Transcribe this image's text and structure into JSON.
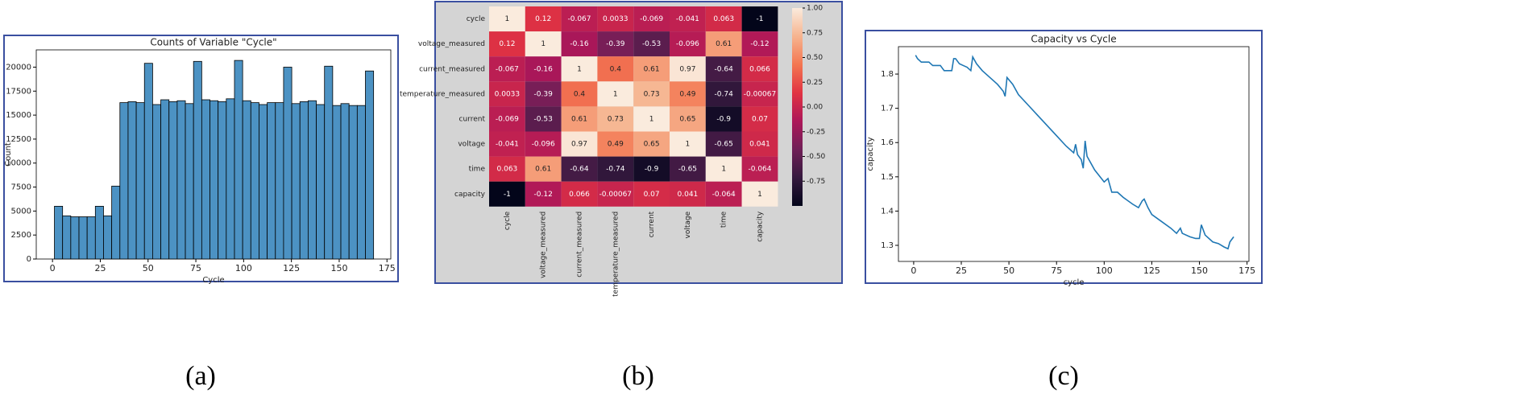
{
  "chart_data": [
    {
      "type": "histogram",
      "title": "Counts of Variable \"Cycle\"",
      "xlabel": "Cycle",
      "ylabel": "Count",
      "panel_label": "(a)",
      "color": "#4c92c3",
      "bins": [
        1,
        5.28,
        9.56,
        13.85,
        18.13,
        22.41,
        26.69,
        30.97,
        35.26,
        39.54,
        43.82,
        48.1,
        52.38,
        56.67,
        60.95,
        65.23,
        69.51,
        73.79,
        78.08,
        82.36,
        86.64,
        90.92,
        95.21,
        99.49,
        103.77,
        108.05,
        112.33,
        116.62,
        120.9,
        125.18,
        129.46,
        133.74,
        138.03,
        142.31,
        146.59,
        150.87,
        155.15,
        159.44,
        163.72,
        168
      ],
      "values": [
        5500,
        4500,
        4400,
        4400,
        4400,
        5500,
        4500,
        7600,
        16300,
        16400,
        16300,
        20400,
        16100,
        16600,
        16400,
        16500,
        16200,
        20600,
        16600,
        16500,
        16400,
        16700,
        20700,
        16500,
        16300,
        16100,
        16300,
        16300,
        20000,
        16200,
        16400,
        16500,
        16100,
        20100,
        16000,
        16200,
        16000,
        16000,
        19600
      ],
      "xlim": [
        -8.5,
        177
      ],
      "xticks": [
        0,
        25,
        50,
        75,
        100,
        125,
        150,
        175
      ],
      "ylim": [
        0,
        21800
      ],
      "yticks": [
        0,
        2500,
        5000,
        7500,
        10000,
        12500,
        15000,
        17500,
        20000
      ]
    },
    {
      "type": "heatmap",
      "panel_label": "(b)",
      "labels": [
        "cycle",
        "voltage_measured",
        "current_measured",
        "temperature_measured",
        "current",
        "voltage",
        "time",
        "capacity"
      ],
      "matrix": [
        [
          1,
          0.12,
          -0.067,
          0.0033,
          -0.069,
          -0.041,
          0.063,
          -1
        ],
        [
          0.12,
          1,
          -0.16,
          -0.39,
          -0.53,
          -0.096,
          0.61,
          -0.12
        ],
        [
          -0.067,
          -0.16,
          1,
          0.4,
          0.61,
          0.97,
          -0.64,
          0.066
        ],
        [
          0.0033,
          -0.39,
          0.4,
          1,
          0.73,
          0.49,
          -0.74,
          -0.00067
        ],
        [
          -0.069,
          -0.53,
          0.61,
          0.73,
          1,
          0.65,
          -0.9,
          0.07
        ],
        [
          -0.041,
          -0.096,
          0.97,
          0.49,
          0.65,
          1,
          -0.65,
          0.041
        ],
        [
          0.063,
          0.61,
          -0.64,
          -0.74,
          -0.9,
          -0.65,
          1,
          -0.064
        ],
        [
          -1,
          -0.12,
          0.066,
          -0.00067,
          0.07,
          0.041,
          -0.064,
          1
        ]
      ],
      "clim": [
        -1,
        1
      ],
      "cticks": [
        {
          "value": 1,
          "label": "1.00"
        },
        0.75,
        {
          "value": 0.5,
          "label": "0.50"
        },
        0.25,
        {
          "value": 0,
          "label": "0.00"
        },
        -0.25,
        {
          "value": -0.5,
          "label": "-0.50"
        },
        -0.75
      ],
      "colors": [
        "#03051a",
        "#35193e",
        "#701f57",
        "#ad1759",
        "#e13342",
        "#f37651",
        "#f6b48f",
        "#faebdd"
      ]
    },
    {
      "type": "line",
      "title": "Capacity vs Cycle",
      "xlabel": "cycle",
      "ylabel": "capacity",
      "panel_label": "(c)",
      "color": "#1f77b4",
      "x": [
        1,
        2,
        4,
        8,
        10,
        14,
        16,
        20,
        21,
        22,
        24,
        26,
        28,
        30,
        31,
        33,
        36,
        40,
        44,
        47,
        48,
        49,
        52,
        55,
        60,
        65,
        70,
        75,
        80,
        84,
        85,
        86,
        88,
        89,
        90,
        91,
        95,
        100,
        102,
        104,
        107,
        110,
        115,
        118,
        120,
        121,
        123,
        125,
        130,
        135,
        138,
        140,
        141,
        145,
        148,
        150,
        151,
        153,
        157,
        160,
        163,
        165,
        166,
        168
      ],
      "y": [
        1.855,
        1.845,
        1.835,
        1.835,
        1.825,
        1.825,
        1.81,
        1.81,
        1.845,
        1.845,
        1.83,
        1.825,
        1.82,
        1.81,
        1.85,
        1.83,
        1.81,
        1.79,
        1.77,
        1.75,
        1.735,
        1.79,
        1.77,
        1.74,
        1.71,
        1.68,
        1.65,
        1.62,
        1.59,
        1.57,
        1.595,
        1.565,
        1.55,
        1.525,
        1.605,
        1.56,
        1.52,
        1.485,
        1.495,
        1.455,
        1.455,
        1.44,
        1.42,
        1.41,
        1.43,
        1.435,
        1.41,
        1.39,
        1.37,
        1.35,
        1.335,
        1.35,
        1.335,
        1.325,
        1.32,
        1.32,
        1.36,
        1.33,
        1.31,
        1.305,
        1.295,
        1.29,
        1.31,
        1.325
      ],
      "xlim": [
        -8,
        176
      ],
      "xticks": [
        0,
        25,
        50,
        75,
        100,
        125,
        150,
        175
      ],
      "ylim": [
        1.253,
        1.88
      ],
      "yticks": [
        1.3,
        1.4,
        1.5,
        1.6,
        1.7,
        1.8
      ]
    }
  ]
}
